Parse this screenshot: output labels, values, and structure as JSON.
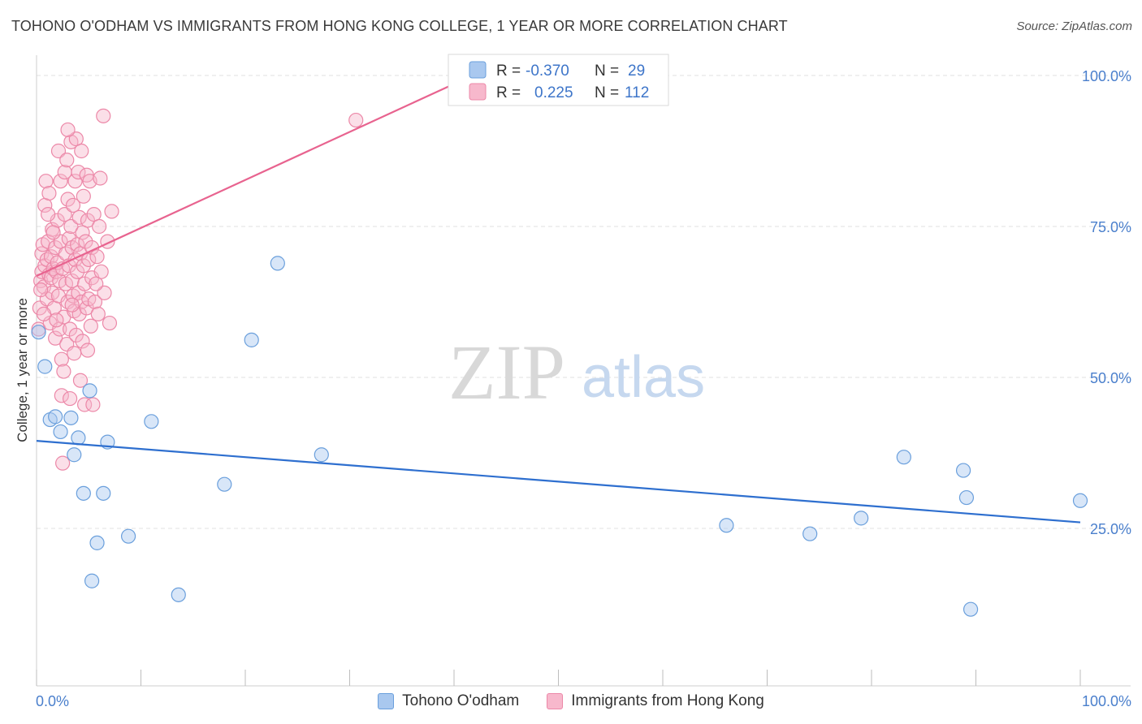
{
  "title": "TOHONO O'ODHAM VS IMMIGRANTS FROM HONG KONG COLLEGE, 1 YEAR OR MORE CORRELATION CHART",
  "source": "Source: ZipAtlas.com",
  "watermark": {
    "zip": "ZIP",
    "atlas": "atlas"
  },
  "colors": {
    "blue_fill": "#a9c8ef",
    "blue_stroke": "#6a9fdc",
    "blue_line": "#2e6fcf",
    "pink_fill": "#f7b8cc",
    "pink_stroke": "#ec88a8",
    "pink_line": "#e8638f",
    "grid": "#e2e2e2",
    "axis_text": "#4a7fcc"
  },
  "stats_legend": [
    {
      "r_label": "R =",
      "r_value": "-0.370",
      "n_label": "N =",
      "n_value": "29"
    },
    {
      "r_label": "R =",
      "r_value": "0.225",
      "n_label": "N =",
      "n_value": "112"
    }
  ],
  "chart_data": {
    "type": "scatter",
    "title": "TOHONO O'ODHAM VS IMMIGRANTS FROM HONG KONG COLLEGE, 1 YEAR OR MORE CORRELATION CHART",
    "xlabel": "",
    "ylabel": "College, 1 year or more",
    "xlim": [
      0,
      100
    ],
    "ylim": [
      0,
      100
    ],
    "x_tick_labels": [
      {
        "value": 0,
        "label": "0.0%"
      },
      {
        "value": 100,
        "label": "100.0%"
      }
    ],
    "y_tick_labels": [
      {
        "value": 25,
        "label": "25.0%"
      },
      {
        "value": 50,
        "label": "50.0%"
      },
      {
        "value": 75,
        "label": "75.0%"
      },
      {
        "value": 100,
        "label": "100.0%"
      }
    ],
    "grid": true,
    "legend": [
      "Tohono O'odham",
      "Immigrants from Hong Kong"
    ],
    "series": [
      {
        "name": "Tohono O'odham",
        "color": "blue",
        "r": -0.37,
        "n": 29,
        "trend": {
          "x": [
            0,
            100
          ],
          "y": [
            39.5,
            26.0
          ]
        },
        "points": [
          [
            0.2,
            57.5
          ],
          [
            0.8,
            51.8
          ],
          [
            1.3,
            43.0
          ],
          [
            1.8,
            43.5
          ],
          [
            2.3,
            41.0
          ],
          [
            3.3,
            43.3
          ],
          [
            3.6,
            37.2
          ],
          [
            4.0,
            40.0
          ],
          [
            4.5,
            30.8
          ],
          [
            5.1,
            47.8
          ],
          [
            5.3,
            16.3
          ],
          [
            5.8,
            22.6
          ],
          [
            6.4,
            30.8
          ],
          [
            6.8,
            39.3
          ],
          [
            8.8,
            23.7
          ],
          [
            11.0,
            42.7
          ],
          [
            13.6,
            14.0
          ],
          [
            18.0,
            32.3
          ],
          [
            20.6,
            56.2
          ],
          [
            23.1,
            68.9
          ],
          [
            27.3,
            37.2
          ],
          [
            66.1,
            25.5
          ],
          [
            74.1,
            24.1
          ],
          [
            79.0,
            26.7
          ],
          [
            83.1,
            36.8
          ],
          [
            88.8,
            34.6
          ],
          [
            89.1,
            30.1
          ],
          [
            89.5,
            11.6
          ],
          [
            100.0,
            29.6
          ]
        ]
      },
      {
        "name": "Immigrants from Hong Kong",
        "color": "pink",
        "r": 0.225,
        "n": 112,
        "trend": {
          "x": [
            0,
            40.5
          ],
          "y": [
            66.8,
            99.0
          ]
        },
        "points": [
          [
            0.2,
            58.0
          ],
          [
            0.3,
            61.5
          ],
          [
            0.4,
            66.0
          ],
          [
            0.5,
            67.5
          ],
          [
            0.5,
            70.5
          ],
          [
            0.6,
            72.0
          ],
          [
            0.7,
            65.0
          ],
          [
            0.8,
            68.5
          ],
          [
            0.8,
            78.5
          ],
          [
            0.9,
            82.5
          ],
          [
            1.0,
            63.0
          ],
          [
            1.0,
            69.5
          ],
          [
            1.1,
            72.5
          ],
          [
            1.2,
            67.0
          ],
          [
            1.2,
            80.5
          ],
          [
            1.3,
            59.0
          ],
          [
            1.4,
            66.5
          ],
          [
            1.4,
            70.0
          ],
          [
            1.5,
            74.5
          ],
          [
            1.5,
            64.0
          ],
          [
            1.6,
            68.0
          ],
          [
            1.7,
            61.5
          ],
          [
            1.8,
            71.5
          ],
          [
            1.8,
            56.5
          ],
          [
            1.9,
            67.5
          ],
          [
            2.0,
            76.0
          ],
          [
            2.0,
            69.0
          ],
          [
            2.1,
            87.5
          ],
          [
            2.1,
            63.5
          ],
          [
            2.2,
            58.0
          ],
          [
            2.2,
            66.0
          ],
          [
            2.3,
            72.5
          ],
          [
            2.3,
            82.5
          ],
          [
            2.4,
            47.0
          ],
          [
            2.4,
            53.0
          ],
          [
            2.5,
            35.8
          ],
          [
            2.5,
            68.0
          ],
          [
            2.6,
            60.0
          ],
          [
            2.7,
            77.0
          ],
          [
            2.7,
            84.0
          ],
          [
            2.8,
            70.5
          ],
          [
            2.8,
            65.5
          ],
          [
            2.9,
            55.5
          ],
          [
            3.0,
            79.5
          ],
          [
            3.0,
            62.5
          ],
          [
            3.1,
            73.0
          ],
          [
            3.1,
            68.5
          ],
          [
            3.2,
            46.5
          ],
          [
            3.2,
            58.0
          ],
          [
            3.3,
            75.0
          ],
          [
            3.3,
            89.0
          ],
          [
            3.4,
            66.0
          ],
          [
            3.4,
            71.5
          ],
          [
            3.5,
            63.5
          ],
          [
            3.5,
            78.5
          ],
          [
            3.6,
            54.0
          ],
          [
            3.6,
            61.0
          ],
          [
            3.7,
            82.5
          ],
          [
            3.7,
            69.5
          ],
          [
            3.8,
            89.5
          ],
          [
            3.8,
            57.0
          ],
          [
            3.9,
            67.5
          ],
          [
            3.9,
            72.0
          ],
          [
            4.0,
            84.0
          ],
          [
            4.0,
            64.0
          ],
          [
            4.1,
            76.5
          ],
          [
            4.1,
            60.5
          ],
          [
            4.2,
            49.5
          ],
          [
            4.2,
            70.5
          ],
          [
            4.3,
            87.5
          ],
          [
            4.3,
            62.5
          ],
          [
            4.4,
            74.0
          ],
          [
            4.4,
            56.0
          ],
          [
            4.5,
            68.5
          ],
          [
            4.5,
            80.0
          ],
          [
            4.6,
            65.5
          ],
          [
            4.6,
            45.5
          ],
          [
            4.7,
            72.5
          ],
          [
            4.8,
            61.5
          ],
          [
            4.8,
            83.5
          ],
          [
            4.9,
            76.0
          ],
          [
            5.0,
            69.5
          ],
          [
            5.0,
            63.0
          ],
          [
            5.1,
            82.5
          ],
          [
            5.2,
            58.5
          ],
          [
            5.3,
            71.5
          ],
          [
            5.3,
            66.5
          ],
          [
            5.4,
            45.5
          ],
          [
            5.5,
            77.0
          ],
          [
            5.6,
            62.5
          ],
          [
            5.8,
            70.0
          ],
          [
            6.0,
            75.0
          ],
          [
            6.2,
            67.5
          ],
          [
            6.5,
            64.0
          ],
          [
            6.8,
            72.5
          ],
          [
            7.0,
            59.0
          ],
          [
            7.2,
            77.5
          ],
          [
            6.4,
            93.3
          ],
          [
            6.1,
            83.0
          ],
          [
            5.9,
            60.5
          ],
          [
            5.7,
            65.5
          ],
          [
            4.9,
            54.5
          ],
          [
            3.0,
            91.0
          ],
          [
            2.6,
            51.0
          ],
          [
            1.9,
            59.5
          ],
          [
            1.6,
            74.0
          ],
          [
            1.1,
            77.0
          ],
          [
            0.7,
            60.5
          ],
          [
            0.4,
            64.5
          ],
          [
            3.4,
            62.0
          ],
          [
            2.9,
            86.0
          ],
          [
            30.6,
            92.6
          ]
        ]
      }
    ]
  },
  "bottom_legend": {
    "items": [
      {
        "label": "Tohono O'odham"
      },
      {
        "label": "Immigrants from Hong Kong"
      }
    ]
  }
}
